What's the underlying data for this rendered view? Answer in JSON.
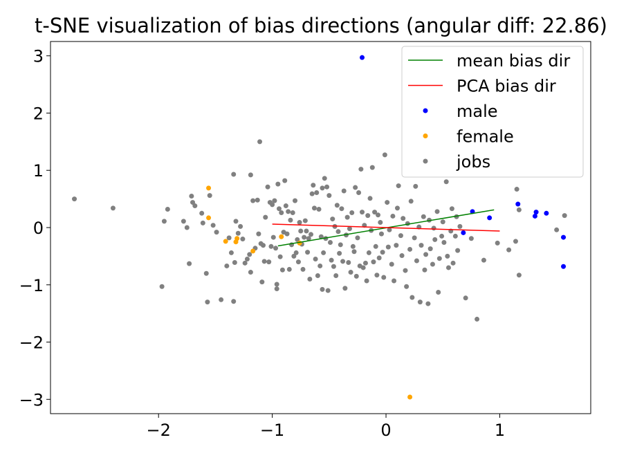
{
  "chart_data": {
    "type": "scatter",
    "title": "t-SNE visualization of bias directions (angular diff: 22.86)",
    "xlabel": "",
    "ylabel": "",
    "xlim": [
      -2.95,
      1.8
    ],
    "ylim": [
      -3.25,
      3.25
    ],
    "xticks": [
      {
        "value": -2,
        "label": "−2"
      },
      {
        "value": -1,
        "label": "−1"
      },
      {
        "value": 0,
        "label": "0"
      },
      {
        "value": 1,
        "label": "1"
      }
    ],
    "yticks": [
      {
        "value": 3,
        "label": "3"
      },
      {
        "value": 2,
        "label": "2"
      },
      {
        "value": 1,
        "label": "1"
      },
      {
        "value": 0,
        "label": "0"
      },
      {
        "value": -1,
        "label": "−1"
      },
      {
        "value": -2,
        "label": "−2"
      },
      {
        "value": -3,
        "label": "−3"
      }
    ],
    "grid": false,
    "legend": "top-right",
    "lines": [
      {
        "name": "mean bias dir",
        "color": "#008000",
        "x": [
          -0.95,
          0.95
        ],
        "y": [
          -0.32,
          0.31
        ]
      },
      {
        "name": "PCA bias dir",
        "color": "#ff0000",
        "x": [
          -1.0,
          1.0
        ],
        "y": [
          0.06,
          -0.06
        ]
      }
    ],
    "series": [
      {
        "name": "male",
        "color": "#0000ff",
        "points": [
          [
            -0.21,
            2.97
          ],
          [
            0.68,
            -0.09
          ],
          [
            0.76,
            0.28
          ],
          [
            0.91,
            0.17
          ],
          [
            1.16,
            0.41
          ],
          [
            1.31,
            0.2
          ],
          [
            1.32,
            0.27
          ],
          [
            1.41,
            0.25
          ],
          [
            1.56,
            -0.17
          ],
          [
            1.56,
            -0.68
          ]
        ]
      },
      {
        "name": "female",
        "color": "#ffa500",
        "points": [
          [
            -1.56,
            0.69
          ],
          [
            -1.56,
            0.17
          ],
          [
            -1.41,
            -0.24
          ],
          [
            -1.32,
            -0.25
          ],
          [
            -1.31,
            -0.19
          ],
          [
            -1.17,
            -0.41
          ],
          [
            -0.92,
            -0.16
          ],
          [
            -0.76,
            -0.27
          ],
          [
            0.21,
            -2.96
          ]
        ]
      },
      {
        "name": "jobs",
        "color": "#808080",
        "points": [
          [
            -2.74,
            0.5
          ],
          [
            -2.4,
            0.34
          ],
          [
            -1.97,
            -1.03
          ],
          [
            -1.95,
            0.11
          ],
          [
            -1.92,
            0.32
          ],
          [
            -1.78,
            0.11
          ],
          [
            -1.75,
            0.0
          ],
          [
            -1.73,
            -0.63
          ],
          [
            -1.71,
            0.55
          ],
          [
            -1.7,
            0.44
          ],
          [
            -1.68,
            0.38
          ],
          [
            -1.62,
            0.25
          ],
          [
            -1.61,
            0.08
          ],
          [
            -1.58,
            -0.8
          ],
          [
            -1.57,
            -1.3
          ],
          [
            -1.55,
            0.56
          ],
          [
            -1.52,
            0.04
          ],
          [
            -1.49,
            -0.08
          ],
          [
            -1.45,
            -1.26
          ],
          [
            -1.4,
            -0.67
          ],
          [
            -1.38,
            -0.18
          ],
          [
            -1.36,
            -0.44
          ],
          [
            -1.34,
            -1.29
          ],
          [
            -1.34,
            0.93
          ],
          [
            -1.33,
            -0.61
          ],
          [
            -1.32,
            0.11
          ],
          [
            -1.3,
            -0.1
          ],
          [
            -1.28,
            0.02
          ],
          [
            -1.26,
            -0.2
          ],
          [
            -1.24,
            -0.62
          ],
          [
            -1.22,
            -0.55
          ],
          [
            -1.2,
            -0.47
          ],
          [
            -1.19,
            -0.78
          ],
          [
            -1.19,
            0.92
          ],
          [
            -1.17,
            0.47
          ],
          [
            -1.15,
            -0.36
          ],
          [
            -1.13,
            0.48
          ],
          [
            -1.12,
            -0.11
          ],
          [
            -1.11,
            1.5
          ],
          [
            -1.1,
            -0.28
          ],
          [
            -1.09,
            -0.95
          ],
          [
            -1.08,
            -0.31
          ],
          [
            -1.07,
            -0.59
          ],
          [
            -1.06,
            0.18
          ],
          [
            -1.04,
            0.71
          ],
          [
            -1.03,
            -0.6
          ],
          [
            -1.02,
            0.44
          ],
          [
            -1.01,
            -0.33
          ],
          [
            -1.0,
            0.4
          ],
          [
            -0.99,
            -0.17
          ],
          [
            -0.98,
            0.47
          ],
          [
            -0.97,
            -0.36
          ],
          [
            -0.96,
            -0.99
          ],
          [
            -0.96,
            -1.07
          ],
          [
            -0.95,
            0.76
          ],
          [
            -0.94,
            0.33
          ],
          [
            -0.93,
            -0.51
          ],
          [
            -0.92,
            0.26
          ],
          [
            -0.91,
            -0.74
          ],
          [
            -0.9,
            -0.08
          ],
          [
            -0.89,
            0.82
          ],
          [
            -0.88,
            0.38
          ],
          [
            -0.87,
            -0.11
          ],
          [
            -0.86,
            0.28
          ],
          [
            -0.85,
            -0.73
          ],
          [
            -0.84,
            0.13
          ],
          [
            -0.83,
            -0.3
          ],
          [
            -0.82,
            0.26
          ],
          [
            -0.81,
            -0.5
          ],
          [
            -0.8,
            0.47
          ],
          [
            -0.79,
            -0.44
          ],
          [
            -0.78,
            -0.21
          ],
          [
            -0.77,
            -0.6
          ],
          [
            -0.76,
            0.09
          ],
          [
            -0.75,
            -0.06
          ],
          [
            -0.74,
            -0.29
          ],
          [
            -0.73,
            -0.73
          ],
          [
            -0.72,
            -0.17
          ],
          [
            -0.71,
            0.12
          ],
          [
            -0.7,
            -0.06
          ],
          [
            -0.69,
            -0.43
          ],
          [
            -0.68,
            -0.19
          ],
          [
            -0.67,
            -0.9
          ],
          [
            -0.66,
            -0.12
          ],
          [
            -0.65,
            0.59
          ],
          [
            -0.64,
            0.74
          ],
          [
            -0.63,
            0.34
          ],
          [
            -0.62,
            -0.55
          ],
          [
            -0.61,
            0.61
          ],
          [
            -0.6,
            -0.84
          ],
          [
            -0.59,
            0.32
          ],
          [
            -0.58,
            -0.67
          ],
          [
            -0.57,
            -0.16
          ],
          [
            -0.56,
            -1.08
          ],
          [
            -0.56,
            0.69
          ],
          [
            -0.55,
            -0.44
          ],
          [
            -0.54,
            0.86
          ],
          [
            -0.53,
            -0.19
          ],
          [
            -0.52,
            0.71
          ],
          [
            -0.51,
            -1.1
          ],
          [
            -0.5,
            0.56
          ],
          [
            -0.49,
            -0.26
          ],
          [
            -0.48,
            -0.57
          ],
          [
            -0.47,
            0.15
          ],
          [
            -0.46,
            -0.68
          ],
          [
            -0.45,
            0.02
          ],
          [
            -0.44,
            -0.84
          ],
          [
            -0.43,
            0.39
          ],
          [
            -0.42,
            -0.07
          ],
          [
            -0.41,
            -0.45
          ],
          [
            -0.4,
            -0.3
          ],
          [
            -0.39,
            0.33
          ],
          [
            -0.38,
            -0.59
          ],
          [
            -0.37,
            0.64
          ],
          [
            -0.36,
            -1.06
          ],
          [
            -0.35,
            -0.13
          ],
          [
            -0.34,
            0.18
          ],
          [
            -0.33,
            -0.61
          ],
          [
            -0.32,
            -0.02
          ],
          [
            -0.31,
            -0.78
          ],
          [
            -0.3,
            0.26
          ],
          [
            -0.29,
            -0.33
          ],
          [
            -0.28,
            -0.42
          ],
          [
            -0.27,
            0.7
          ],
          [
            -0.26,
            -0.85
          ],
          [
            -0.25,
            -0.18
          ],
          [
            -0.24,
            0.61
          ],
          [
            -0.23,
            -0.67
          ],
          [
            -0.22,
            1.02
          ],
          [
            -0.21,
            0.27
          ],
          [
            -0.2,
            -0.7
          ],
          [
            -0.19,
            0.04
          ],
          [
            -0.18,
            -0.62
          ],
          [
            -0.17,
            -0.93
          ],
          [
            -0.16,
            0.21
          ],
          [
            -0.15,
            -0.44
          ],
          [
            -0.14,
            0.51
          ],
          [
            -0.13,
            -0.05
          ],
          [
            -0.12,
            1.05
          ],
          [
            -0.11,
            -0.6
          ],
          [
            -0.1,
            0.27
          ],
          [
            -0.09,
            -0.33
          ],
          [
            -0.08,
            -0.83
          ],
          [
            -0.07,
            0.22
          ],
          [
            -0.06,
            -0.53
          ],
          [
            -0.05,
            0.09
          ],
          [
            -0.04,
            -0.11
          ],
          [
            -0.03,
            -0.43
          ],
          [
            -0.02,
            -0.87
          ],
          [
            -0.01,
            1.27
          ],
          [
            0.01,
            0.44
          ],
          [
            0.02,
            -0.34
          ],
          [
            0.03,
            -0.04
          ],
          [
            0.05,
            -0.64
          ],
          [
            0.06,
            0.2
          ],
          [
            0.07,
            -0.93
          ],
          [
            0.09,
            -0.31
          ],
          [
            0.1,
            0.34
          ],
          [
            0.11,
            0.73
          ],
          [
            0.13,
            -0.14
          ],
          [
            0.14,
            -0.49
          ],
          [
            0.15,
            0.16
          ],
          [
            0.17,
            -0.75
          ],
          [
            0.18,
            -1.03
          ],
          [
            0.19,
            0.07
          ],
          [
            0.21,
            -0.38
          ],
          [
            0.22,
            0.46
          ],
          [
            0.23,
            -1.22
          ],
          [
            0.25,
            -0.18
          ],
          [
            0.26,
            0.72
          ],
          [
            0.27,
            -0.58
          ],
          [
            0.29,
            0.01
          ],
          [
            0.3,
            -1.3
          ],
          [
            0.31,
            -0.31
          ],
          [
            0.33,
            0.19
          ],
          [
            0.34,
            -0.74
          ],
          [
            0.35,
            -0.47
          ],
          [
            0.37,
            -1.33
          ],
          [
            0.38,
            0.13
          ],
          [
            0.39,
            -0.37
          ],
          [
            0.41,
            -0.64
          ],
          [
            0.42,
            -0.01
          ],
          [
            0.43,
            -0.21
          ],
          [
            0.45,
            0.28
          ],
          [
            0.46,
            -1.13
          ],
          [
            0.47,
            -0.54
          ],
          [
            0.49,
            -0.15
          ],
          [
            0.5,
            0.1
          ],
          [
            0.51,
            -0.26
          ],
          [
            0.53,
            0.8
          ],
          [
            0.54,
            -0.5
          ],
          [
            0.55,
            -0.7
          ],
          [
            0.57,
            -0.06
          ],
          [
            0.58,
            0.33
          ],
          [
            0.59,
            -0.62
          ],
          [
            0.61,
            -0.15
          ],
          [
            0.62,
            0.19
          ],
          [
            0.63,
            -0.4
          ],
          [
            0.65,
            0.02
          ],
          [
            0.7,
            -1.23
          ],
          [
            0.75,
            -0.19
          ],
          [
            0.8,
            -1.6
          ],
          [
            0.86,
            -0.57
          ],
          [
            0.98,
            -0.27
          ],
          [
            1.08,
            -0.39
          ],
          [
            1.14,
            -0.24
          ],
          [
            1.15,
            0.67
          ],
          [
            1.17,
            0.31
          ],
          [
            1.17,
            -0.83
          ],
          [
            1.5,
            -0.04
          ],
          [
            1.57,
            0.21
          ]
        ]
      }
    ]
  }
}
